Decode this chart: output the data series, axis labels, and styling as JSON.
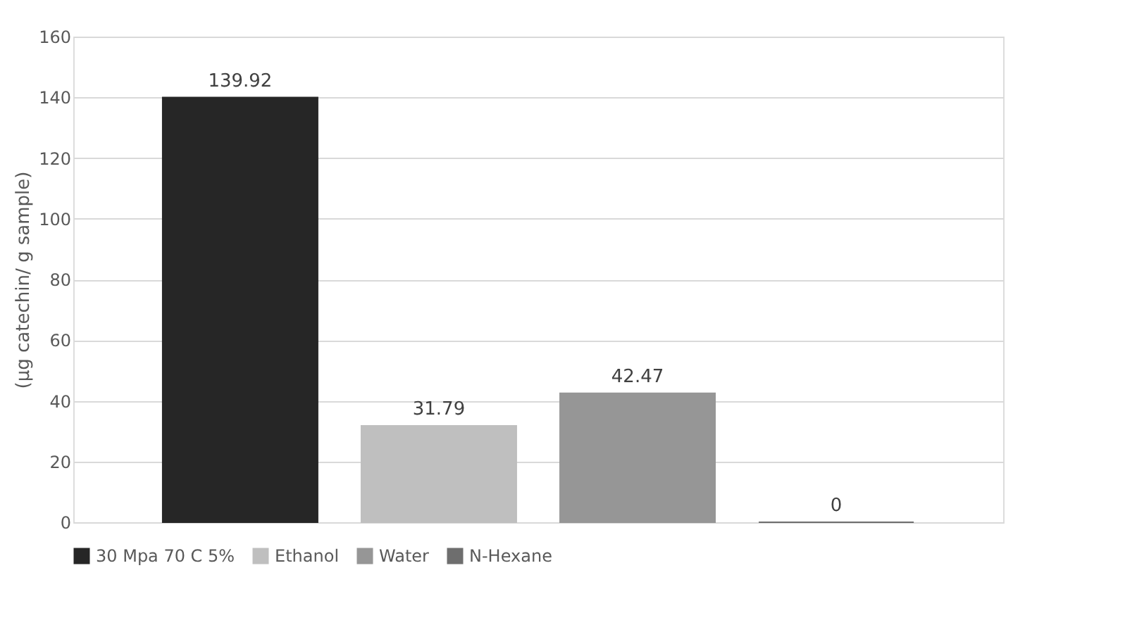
{
  "chart_data": {
    "type": "bar",
    "categories": [
      null
    ],
    "ylabel": "(µg catechin/ g sample)",
    "ylim": [
      0,
      160
    ],
    "yticks": [
      0,
      20,
      40,
      60,
      80,
      100,
      120,
      140,
      160
    ],
    "grid": "y",
    "legend": "bottom",
    "data_labels": true,
    "series": [
      {
        "name": "30 Mpa 70 C 5%",
        "color": "#262626",
        "values": [
          139.92
        ]
      },
      {
        "name": "Ethanol",
        "color": "#bfbfbf",
        "values": [
          31.79
        ]
      },
      {
        "name": "Water",
        "color": "#969696",
        "values": [
          42.47
        ]
      },
      {
        "name": "N-Hexane",
        "color": "#6e6e6e",
        "values": [
          0
        ]
      }
    ]
  }
}
